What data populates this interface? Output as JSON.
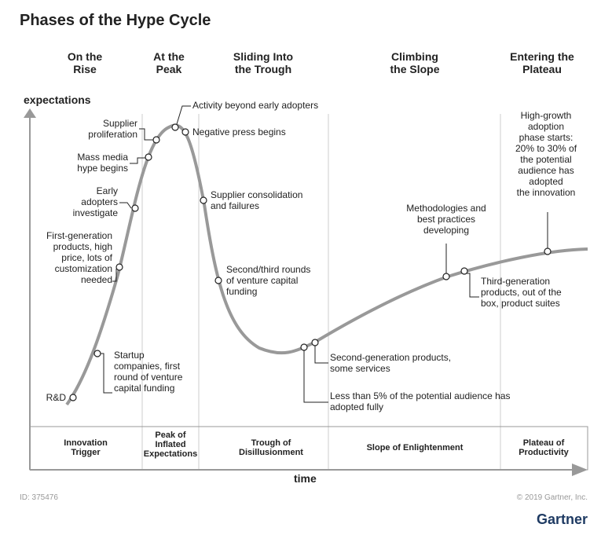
{
  "title": "Phases of the Hype Cycle",
  "phases": [
    {
      "top": "On the\nRise",
      "bottom": "Innovation\nTrigger"
    },
    {
      "top": "At the\nPeak",
      "bottom": "Peak of\nInflated\nExpectations"
    },
    {
      "top": "Sliding Into\nthe Trough",
      "bottom": "Trough of\nDisillusionment"
    },
    {
      "top": "Climbing\nthe Slope",
      "bottom": "Slope of Enlightenment"
    },
    {
      "top": "Entering the\nPlateau",
      "bottom": "Plateau of\nProductivity"
    }
  ],
  "axis": {
    "y": "expectations",
    "x": "time"
  },
  "annotations": [
    "R&D",
    "Startup\ncompanies, first\nround of venture\ncapital funding",
    "First-generation\nproducts, high\nprice, lots of\ncustomization\nneeded",
    "Early\nadopters\ninvestigate",
    "Mass media\nhype begins",
    "Supplier\nproliferation",
    "Activity beyond early adopters",
    "Negative press begins",
    "Supplier consolidation\nand failures",
    "Second/third rounds\nof venture capital\nfunding",
    "Less than 5% of the potential audience has\nadopted fully",
    "Second-generation products,\nsome services",
    "Methodologies and\nbest practices\ndeveloping",
    "Third-generation\nproducts, out of the\nbox, product suites",
    "High-growth\nadoption\nphase starts:\n20% to 30% of\nthe potential\naudience has\nadopted\nthe innovation"
  ],
  "footer": {
    "id": "ID: 375476",
    "copyright": "© 2019 Gartner, Inc.",
    "brand": "Gartner"
  }
}
